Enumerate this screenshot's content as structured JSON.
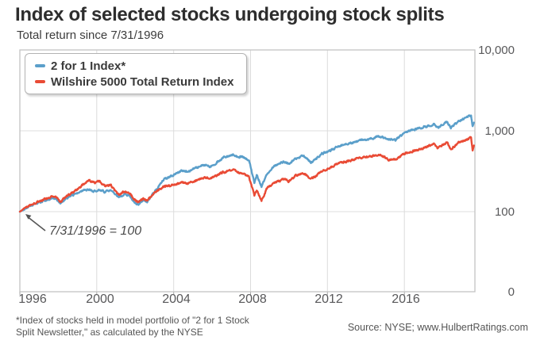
{
  "header": {
    "title": "Index of selected stocks undergoing stock splits",
    "subtitle": "Total return since 7/31/1996"
  },
  "annotation": {
    "text": "7/31/1996 = 100"
  },
  "footer": {
    "footnote_line1": "*Index of stocks held in model portfolio of \"2 for 1 Stock",
    "footnote_line2": "Split Newsletter,\" as calculated by the NYSE",
    "source": "Source: NYSE; www.HulbertRatings.com"
  },
  "colors": {
    "blue": "#5b9fca",
    "red": "#e94b35",
    "grid": "#dcdcdc",
    "border": "#c4c4c4",
    "tick": "#a9a9a9",
    "arrow": "#555555"
  },
  "chart_data": {
    "type": "line",
    "title": "Index of selected stocks undergoing stock splits",
    "subtitle": "Total return since 7/31/1996",
    "baseline_note": "7/31/1996 = 100",
    "legend_position": "top-left",
    "grid": true,
    "x_axis": {
      "label": "",
      "range": [
        1996.58,
        2020.25
      ],
      "tick_labels": [
        "1996",
        "2000",
        "2004",
        "2008",
        "2012",
        "2016"
      ],
      "gridline_years": [
        2000.58,
        2004.58,
        2008.58,
        2012.58,
        2016.58
      ]
    },
    "y_axis": {
      "label": "",
      "scale": "log",
      "range": [
        0,
        10000
      ],
      "tick_labels": [
        "10,000",
        "1,000",
        "100",
        "0"
      ],
      "tick_values": [
        10000,
        1000,
        100,
        0
      ],
      "gridline_values": [
        1000,
        100
      ]
    },
    "series": [
      {
        "name": "2 for 1 Index*",
        "color": "#5b9fca",
        "points": [
          [
            1996.58,
            100
          ],
          [
            1996.9,
            110
          ],
          [
            1997.3,
            122
          ],
          [
            1997.7,
            133
          ],
          [
            1998.0,
            140
          ],
          [
            1998.35,
            149
          ],
          [
            1998.55,
            138
          ],
          [
            1998.7,
            126
          ],
          [
            1999.0,
            147
          ],
          [
            1999.4,
            163
          ],
          [
            1999.8,
            178
          ],
          [
            2000.15,
            190
          ],
          [
            2000.45,
            178
          ],
          [
            2000.7,
            188
          ],
          [
            2001.0,
            175
          ],
          [
            2001.3,
            185
          ],
          [
            2001.6,
            158
          ],
          [
            2001.75,
            150
          ],
          [
            2002.0,
            163
          ],
          [
            2002.3,
            158
          ],
          [
            2002.55,
            130
          ],
          [
            2002.75,
            124
          ],
          [
            2003.0,
            140
          ],
          [
            2003.2,
            133
          ],
          [
            2003.6,
            176
          ],
          [
            2004.05,
            248
          ],
          [
            2004.5,
            278
          ],
          [
            2005.0,
            322
          ],
          [
            2005.3,
            310
          ],
          [
            2005.7,
            345
          ],
          [
            2006.2,
            380
          ],
          [
            2006.5,
            360
          ],
          [
            2006.9,
            420
          ],
          [
            2007.2,
            470
          ],
          [
            2007.65,
            508
          ],
          [
            2007.9,
            478
          ],
          [
            2008.2,
            468
          ],
          [
            2008.5,
            430
          ],
          [
            2008.78,
            232
          ],
          [
            2008.9,
            285
          ],
          [
            2009.15,
            205
          ],
          [
            2009.45,
            298
          ],
          [
            2009.8,
            358
          ],
          [
            2010.3,
            420
          ],
          [
            2010.55,
            388
          ],
          [
            2010.9,
            452
          ],
          [
            2011.35,
            490
          ],
          [
            2011.72,
            404
          ],
          [
            2011.95,
            438
          ],
          [
            2012.25,
            518
          ],
          [
            2012.65,
            558
          ],
          [
            2013.1,
            635
          ],
          [
            2013.7,
            700
          ],
          [
            2014.1,
            742
          ],
          [
            2014.8,
            798
          ],
          [
            2015.3,
            852
          ],
          [
            2015.75,
            795
          ],
          [
            2016.12,
            772
          ],
          [
            2016.6,
            955
          ],
          [
            2017.1,
            1038
          ],
          [
            2017.6,
            1118
          ],
          [
            2018.12,
            1208
          ],
          [
            2018.3,
            1082
          ],
          [
            2018.8,
            1305
          ],
          [
            2019.0,
            1085
          ],
          [
            2019.4,
            1308
          ],
          [
            2019.8,
            1455
          ],
          [
            2020.05,
            1555
          ],
          [
            2020.13,
            1135
          ],
          [
            2020.2,
            1265
          ]
        ]
      },
      {
        "name": "Wilshire 5000 Total Return Index",
        "color": "#e94b35",
        "points": [
          [
            1996.58,
            100
          ],
          [
            1996.9,
            112
          ],
          [
            1997.3,
            126
          ],
          [
            1997.7,
            138
          ],
          [
            1998.0,
            146
          ],
          [
            1998.35,
            156
          ],
          [
            1998.55,
            142
          ],
          [
            1998.7,
            131
          ],
          [
            1999.0,
            154
          ],
          [
            1999.4,
            178
          ],
          [
            1999.8,
            208
          ],
          [
            2000.15,
            247
          ],
          [
            2000.45,
            228
          ],
          [
            2000.7,
            238
          ],
          [
            2001.0,
            208
          ],
          [
            2001.3,
            215
          ],
          [
            2001.6,
            172
          ],
          [
            2001.75,
            162
          ],
          [
            2002.0,
            176
          ],
          [
            2002.3,
            168
          ],
          [
            2002.55,
            140
          ],
          [
            2002.75,
            131
          ],
          [
            2003.0,
            146
          ],
          [
            2003.2,
            139
          ],
          [
            2003.6,
            170
          ],
          [
            2004.05,
            204
          ],
          [
            2004.5,
            213
          ],
          [
            2005.0,
            228
          ],
          [
            2005.3,
            222
          ],
          [
            2005.7,
            242
          ],
          [
            2006.2,
            265
          ],
          [
            2006.5,
            258
          ],
          [
            2006.9,
            288
          ],
          [
            2007.2,
            310
          ],
          [
            2007.65,
            330
          ],
          [
            2007.9,
            312
          ],
          [
            2008.2,
            292
          ],
          [
            2008.5,
            268
          ],
          [
            2008.78,
            158
          ],
          [
            2008.9,
            182
          ],
          [
            2009.15,
            138
          ],
          [
            2009.45,
            198
          ],
          [
            2009.8,
            224
          ],
          [
            2010.3,
            254
          ],
          [
            2010.55,
            238
          ],
          [
            2010.9,
            276
          ],
          [
            2011.35,
            298
          ],
          [
            2011.72,
            256
          ],
          [
            2011.95,
            272
          ],
          [
            2012.25,
            315
          ],
          [
            2012.65,
            342
          ],
          [
            2013.1,
            388
          ],
          [
            2013.7,
            424
          ],
          [
            2014.1,
            453
          ],
          [
            2014.8,
            488
          ],
          [
            2015.3,
            508
          ],
          [
            2015.75,
            442
          ],
          [
            2016.12,
            438
          ],
          [
            2016.6,
            522
          ],
          [
            2017.1,
            568
          ],
          [
            2017.6,
            612
          ],
          [
            2018.12,
            682
          ],
          [
            2018.3,
            612
          ],
          [
            2018.8,
            722
          ],
          [
            2019.0,
            590
          ],
          [
            2019.4,
            710
          ],
          [
            2019.8,
            768
          ],
          [
            2020.05,
            828
          ],
          [
            2020.13,
            572
          ],
          [
            2020.2,
            658
          ]
        ]
      }
    ]
  }
}
